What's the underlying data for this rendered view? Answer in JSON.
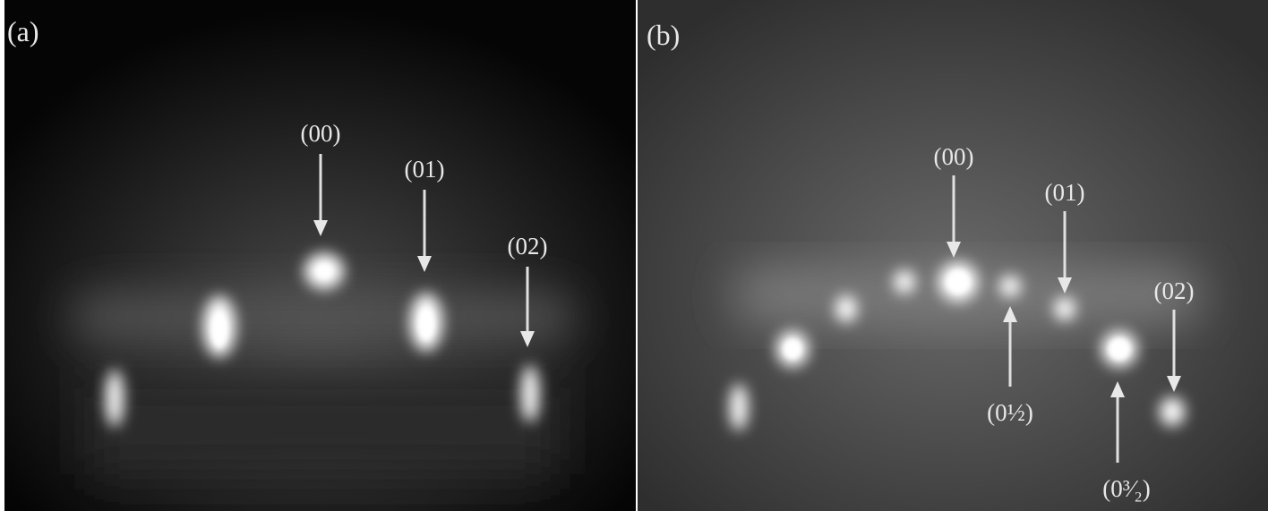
{
  "panels": [
    {
      "label": "(a)",
      "annotations": [
        "(00)",
        "(01)",
        "(02)"
      ]
    },
    {
      "label": "(b)",
      "annotations": [
        "(00)",
        "(01)",
        "(02)",
        "(0½)",
        "(0³⁄₂)"
      ]
    }
  ]
}
